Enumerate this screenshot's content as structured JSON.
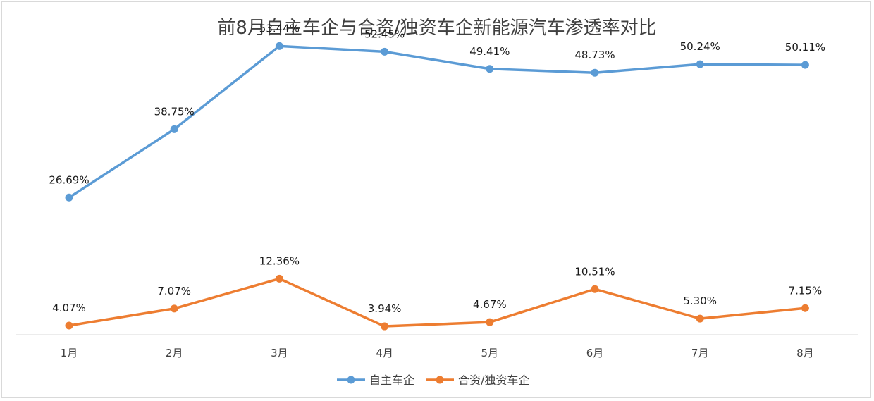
{
  "chart_data": {
    "type": "line",
    "title": "前8月自主车企与合资/独资车企新能源汽车渗透率对比",
    "xlabel": "",
    "ylabel": "",
    "categories": [
      "1月",
      "2月",
      "3月",
      "4月",
      "5月",
      "6月",
      "7月",
      "8月"
    ],
    "ylim": [
      0,
      60
    ],
    "grid": false,
    "legend_position": "bottom",
    "series": [
      {
        "name": "自主车企",
        "color": "#5b9bd5",
        "values": [
          26.69,
          38.75,
          53.44,
          52.45,
          49.41,
          48.73,
          50.24,
          50.11
        ],
        "labels": [
          "26.69%",
          "38.75%",
          "53.44%",
          "52.45%",
          "49.41%",
          "48.73%",
          "50.24%",
          "50.11%"
        ]
      },
      {
        "name": "合资/独资车企",
        "color": "#ed7d31",
        "values": [
          4.07,
          7.07,
          12.36,
          3.94,
          4.67,
          10.51,
          5.3,
          7.15
        ],
        "labels": [
          "4.07%",
          "7.07%",
          "12.36%",
          "3.94%",
          "4.67%",
          "10.51%",
          "5.30%",
          "7.15%"
        ]
      }
    ]
  }
}
